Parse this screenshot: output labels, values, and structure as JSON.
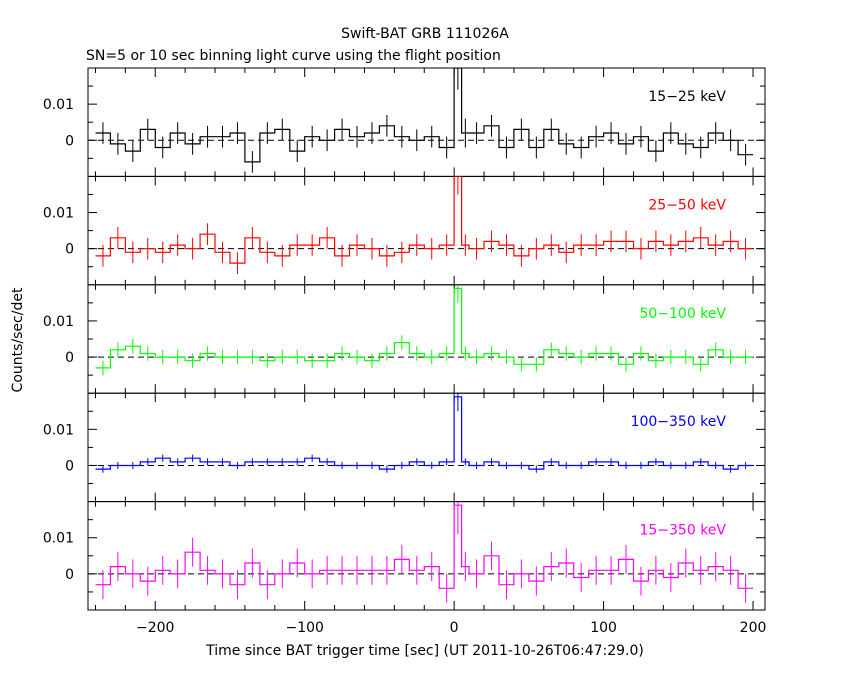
{
  "chart_data": {
    "type": "line",
    "title": "Swift-BAT GRB 111026A",
    "subtitle": "SN=5 or 10 sec binning light curve using the flight position",
    "xlabel": "Time since BAT trigger time [sec] (UT 2011-10-26T06:47:29.0)",
    "ylabel": "Counts/sec/det",
    "xlim": [
      -245,
      208
    ],
    "ylim": [
      -0.01,
      0.02
    ],
    "x_ticks": [
      -200,
      -100,
      0,
      100,
      200
    ],
    "x_tick_labels": [
      "−200",
      "−100",
      "0",
      "100",
      "200"
    ],
    "y_ticks": [
      0,
      0.01
    ],
    "y_tick_labels": [
      "0",
      "0.01"
    ],
    "bin_edges": [
      -240,
      -230,
      -220,
      -210,
      -200,
      -190,
      -180,
      -170,
      -160,
      -150,
      -140,
      -130,
      -120,
      -110,
      -100,
      -90,
      -80,
      -70,
      -60,
      -50,
      -40,
      -30,
      -20,
      -10,
      0,
      5,
      10,
      20,
      30,
      40,
      50,
      60,
      70,
      80,
      90,
      100,
      110,
      120,
      130,
      140,
      150,
      160,
      170,
      180,
      190,
      200
    ],
    "series": [
      {
        "name": "15−25 keV",
        "color": "#000000",
        "values": [
          0.002,
          -0.001,
          -0.003,
          0.003,
          -0.002,
          0.002,
          -0.001,
          0.001,
          0.001,
          0.002,
          -0.006,
          0.002,
          0.003,
          -0.003,
          0.001,
          0.0,
          0.003,
          0.001,
          0.002,
          0.004,
          0.001,
          0.0,
          0.001,
          -0.002,
          0.02,
          0.002,
          0.002,
          0.004,
          -0.002,
          0.003,
          -0.002,
          0.003,
          -0.001,
          -0.002,
          0.001,
          0.002,
          -0.001,
          0.001,
          -0.003,
          0.002,
          -0.001,
          -0.002,
          0.002,
          0.0,
          -0.004
        ],
        "errors": [
          0.003,
          0.003,
          0.003,
          0.003,
          0.003,
          0.003,
          0.003,
          0.003,
          0.003,
          0.003,
          0.003,
          0.003,
          0.003,
          0.003,
          0.003,
          0.003,
          0.003,
          0.003,
          0.003,
          0.003,
          0.003,
          0.003,
          0.003,
          0.003,
          0.006,
          0.004,
          0.003,
          0.003,
          0.003,
          0.003,
          0.003,
          0.003,
          0.003,
          0.003,
          0.003,
          0.003,
          0.003,
          0.003,
          0.003,
          0.003,
          0.003,
          0.003,
          0.003,
          0.003,
          0.003
        ]
      },
      {
        "name": "25−50 keV",
        "color": "#ff0000",
        "values": [
          -0.002,
          0.003,
          -0.001,
          0.0,
          -0.001,
          0.001,
          0.0,
          0.004,
          -0.001,
          -0.004,
          0.003,
          -0.001,
          -0.002,
          0.001,
          0.001,
          0.003,
          -0.002,
          0.001,
          0.0,
          -0.002,
          -0.001,
          0.001,
          0.0,
          0.001,
          0.02,
          0.001,
          0.0,
          0.002,
          0.001,
          -0.002,
          0.0,
          0.001,
          -0.001,
          0.001,
          0.001,
          0.002,
          0.002,
          0.0,
          0.002,
          0.001,
          0.002,
          0.003,
          0.001,
          0.002,
          0.0
        ],
        "errors": [
          0.003,
          0.003,
          0.003,
          0.003,
          0.003,
          0.003,
          0.003,
          0.003,
          0.003,
          0.003,
          0.003,
          0.003,
          0.003,
          0.003,
          0.003,
          0.003,
          0.003,
          0.003,
          0.003,
          0.003,
          0.003,
          0.003,
          0.003,
          0.003,
          0.005,
          0.003,
          0.003,
          0.003,
          0.003,
          0.003,
          0.003,
          0.003,
          0.003,
          0.003,
          0.003,
          0.003,
          0.003,
          0.003,
          0.003,
          0.003,
          0.003,
          0.003,
          0.003,
          0.003,
          0.003
        ]
      },
      {
        "name": "50−100 keV",
        "color": "#00ff00",
        "values": [
          -0.003,
          0.002,
          0.003,
          0.001,
          0.0,
          0.0,
          -0.001,
          0.001,
          0.0,
          0.0,
          0.0,
          -0.001,
          0.0,
          0.0,
          -0.001,
          -0.001,
          0.001,
          0.0,
          -0.001,
          0.001,
          0.004,
          0.001,
          0.0,
          0.001,
          0.019,
          0.001,
          0.0,
          0.001,
          0.0,
          -0.002,
          -0.002,
          0.002,
          0.001,
          0.0,
          0.001,
          0.001,
          -0.002,
          0.001,
          -0.001,
          0.0,
          0.0,
          -0.002,
          0.002,
          0.0,
          0.0
        ],
        "errors": [
          0.002,
          0.002,
          0.002,
          0.002,
          0.002,
          0.002,
          0.002,
          0.002,
          0.002,
          0.002,
          0.002,
          0.002,
          0.002,
          0.002,
          0.002,
          0.002,
          0.002,
          0.002,
          0.002,
          0.002,
          0.002,
          0.002,
          0.002,
          0.002,
          0.004,
          0.002,
          0.002,
          0.002,
          0.002,
          0.002,
          0.002,
          0.002,
          0.002,
          0.002,
          0.002,
          0.002,
          0.002,
          0.002,
          0.002,
          0.002,
          0.002,
          0.002,
          0.002,
          0.002,
          0.002
        ]
      },
      {
        "name": "100−350 keV",
        "color": "#0000ff",
        "values": [
          -0.001,
          0.0,
          0.0,
          0.001,
          0.002,
          0.001,
          0.002,
          0.001,
          0.001,
          0.0,
          0.001,
          0.001,
          0.001,
          0.001,
          0.002,
          0.001,
          0.0,
          0.0,
          0.0,
          -0.001,
          0.0,
          0.001,
          0.0,
          0.001,
          0.019,
          0.001,
          0.0,
          0.001,
          0.0,
          0.0,
          -0.001,
          0.001,
          0.0,
          0.0,
          0.001,
          0.001,
          0.0,
          0.0,
          0.001,
          0.0,
          0.0,
          0.001,
          0.0,
          -0.001,
          0.0
        ],
        "errors": [
          0.001,
          0.001,
          0.001,
          0.001,
          0.001,
          0.001,
          0.001,
          0.001,
          0.001,
          0.001,
          0.001,
          0.001,
          0.001,
          0.001,
          0.001,
          0.001,
          0.001,
          0.001,
          0.001,
          0.001,
          0.001,
          0.001,
          0.001,
          0.001,
          0.004,
          0.001,
          0.001,
          0.001,
          0.001,
          0.001,
          0.001,
          0.001,
          0.001,
          0.001,
          0.001,
          0.001,
          0.001,
          0.001,
          0.001,
          0.001,
          0.001,
          0.001,
          0.001,
          0.001,
          0.001
        ]
      },
      {
        "name": "15−350 keV",
        "color": "#ff00ff",
        "values": [
          -0.003,
          0.002,
          0.0,
          -0.002,
          0.001,
          0.0,
          0.006,
          0.001,
          0.0,
          -0.003,
          0.003,
          -0.003,
          0.0,
          0.003,
          0.0,
          0.001,
          0.001,
          0.001,
          0.001,
          0.001,
          0.004,
          0.001,
          0.002,
          -0.004,
          0.019,
          0.002,
          0.0,
          0.005,
          -0.003,
          0.0,
          -0.002,
          0.002,
          0.003,
          -0.001,
          0.001,
          0.001,
          0.004,
          -0.002,
          0.001,
          -0.001,
          0.003,
          0.001,
          0.002,
          0.001,
          -0.004
        ],
        "errors": [
          0.004,
          0.004,
          0.004,
          0.004,
          0.004,
          0.004,
          0.004,
          0.004,
          0.004,
          0.004,
          0.004,
          0.004,
          0.004,
          0.004,
          0.004,
          0.004,
          0.004,
          0.004,
          0.004,
          0.004,
          0.004,
          0.004,
          0.004,
          0.004,
          0.008,
          0.004,
          0.004,
          0.004,
          0.004,
          0.004,
          0.004,
          0.004,
          0.004,
          0.004,
          0.004,
          0.004,
          0.004,
          0.004,
          0.004,
          0.004,
          0.004,
          0.004,
          0.004,
          0.004,
          0.004
        ]
      }
    ]
  }
}
